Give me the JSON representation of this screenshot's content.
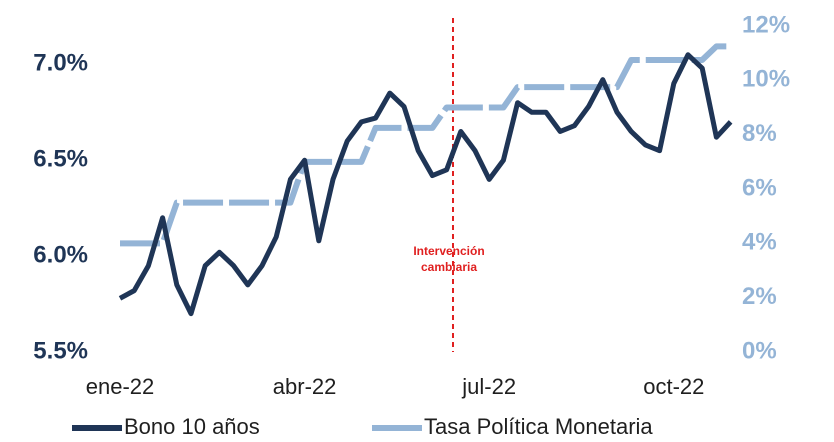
{
  "chart_data": {
    "type": "line",
    "categories": [
      "ene-22",
      null,
      null,
      null,
      null,
      null,
      null,
      null,
      null,
      null,
      null,
      null,
      null,
      "abr-22",
      null,
      null,
      null,
      null,
      null,
      null,
      null,
      null,
      null,
      null,
      null,
      null,
      "jul-22",
      null,
      null,
      null,
      null,
      null,
      null,
      null,
      null,
      null,
      null,
      null,
      null,
      "oct-22",
      null,
      null,
      null,
      null
    ],
    "series": [
      {
        "name": "Bono 10 años",
        "color": "#1f3556",
        "values": [
          5.78,
          5.82,
          5.95,
          6.2,
          5.85,
          5.7,
          5.95,
          6.02,
          5.95,
          5.85,
          5.95,
          6.1,
          6.4,
          6.5,
          6.08,
          6.4,
          6.6,
          6.7,
          6.72,
          6.85,
          6.78,
          6.55,
          6.42,
          6.45,
          6.65,
          6.55,
          6.4,
          6.5,
          6.8,
          6.75,
          6.75,
          6.65,
          6.68,
          6.78,
          6.92,
          6.75,
          6.65,
          6.58,
          6.55,
          6.9,
          7.05,
          6.98,
          6.62,
          6.7
        ]
      },
      {
        "name": "Tasa Política Monetaria",
        "color": "#94b4d6",
        "axis": "y2",
        "values": [
          4,
          4,
          4,
          4,
          5.5,
          5.5,
          5.5,
          5.5,
          5.5,
          5.5,
          5.5,
          5.5,
          5.5,
          7,
          7,
          7,
          7,
          7,
          8.25,
          8.25,
          8.25,
          8.25,
          8.25,
          9,
          9,
          9,
          9,
          9,
          9.75,
          9.75,
          9.75,
          9.75,
          9.75,
          9.75,
          9.75,
          9.75,
          10.75,
          10.75,
          10.75,
          10.75,
          10.75,
          10.75,
          11.25,
          11.25
        ]
      }
    ],
    "ylim": [
      5.5,
      7.2
    ],
    "yticks": [
      {
        "value": 5.5,
        "label": "5.5%"
      },
      {
        "value": 6.0,
        "label": "6.0%"
      },
      {
        "value": 6.5,
        "label": "6.5%"
      },
      {
        "value": 7.0,
        "label": "7.0%"
      }
    ],
    "y2lim": [
      0,
      12
    ],
    "y2ticks": [
      {
        "value": 0,
        "label": "0%"
      },
      {
        "value": 2,
        "label": "2%"
      },
      {
        "value": 4,
        "label": "4%"
      },
      {
        "value": 6,
        "label": "6%"
      },
      {
        "value": 8,
        "label": "8%"
      },
      {
        "value": 10,
        "label": "10%"
      },
      {
        "value": 12,
        "label": "12%"
      }
    ],
    "annotation": [
      "Intervención",
      "cambiaria"
    ],
    "legend": "bottom"
  }
}
